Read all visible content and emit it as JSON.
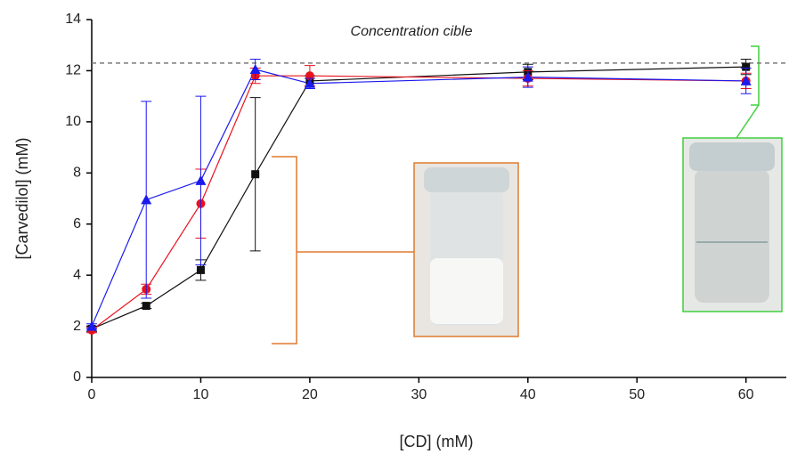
{
  "chart_data": {
    "type": "line",
    "x_label": "[CD] (mM)",
    "y_label": "[Carvedilol] (mM)",
    "annotation": "Concentration cible",
    "reference_line": 12.3,
    "x": [
      0,
      5,
      10,
      15,
      20,
      40,
      60
    ],
    "series": [
      {
        "color": "#111111",
        "marker": "square",
        "values": [
          1.9,
          2.8,
          4.2,
          7.95,
          11.6,
          11.95,
          12.15
        ],
        "errors": [
          0.1,
          0.1,
          0.4,
          3.0,
          0.2,
          0.3,
          0.3
        ]
      },
      {
        "color": "#e8121d",
        "marker": "circle",
        "values": [
          1.85,
          3.45,
          6.8,
          11.8,
          11.8,
          11.7,
          11.6
        ],
        "errors": [
          0.1,
          0.2,
          1.35,
          0.3,
          0.4,
          0.3,
          0.3
        ]
      },
      {
        "color": "#1a1aee",
        "marker": "triangle",
        "values": [
          2.0,
          6.95,
          7.7,
          12.05,
          11.5,
          11.75,
          11.6
        ],
        "errors": [
          0.1,
          3.85,
          3.3,
          0.4,
          0.2,
          0.4,
          0.5
        ]
      }
    ],
    "xlim": [
      0,
      63.7
    ],
    "ylim": [
      0,
      14
    ],
    "xticks": [
      0,
      10,
      20,
      30,
      40,
      50,
      60
    ],
    "yticks": [
      0,
      2,
      4,
      6,
      8,
      10,
      12,
      14
    ]
  }
}
